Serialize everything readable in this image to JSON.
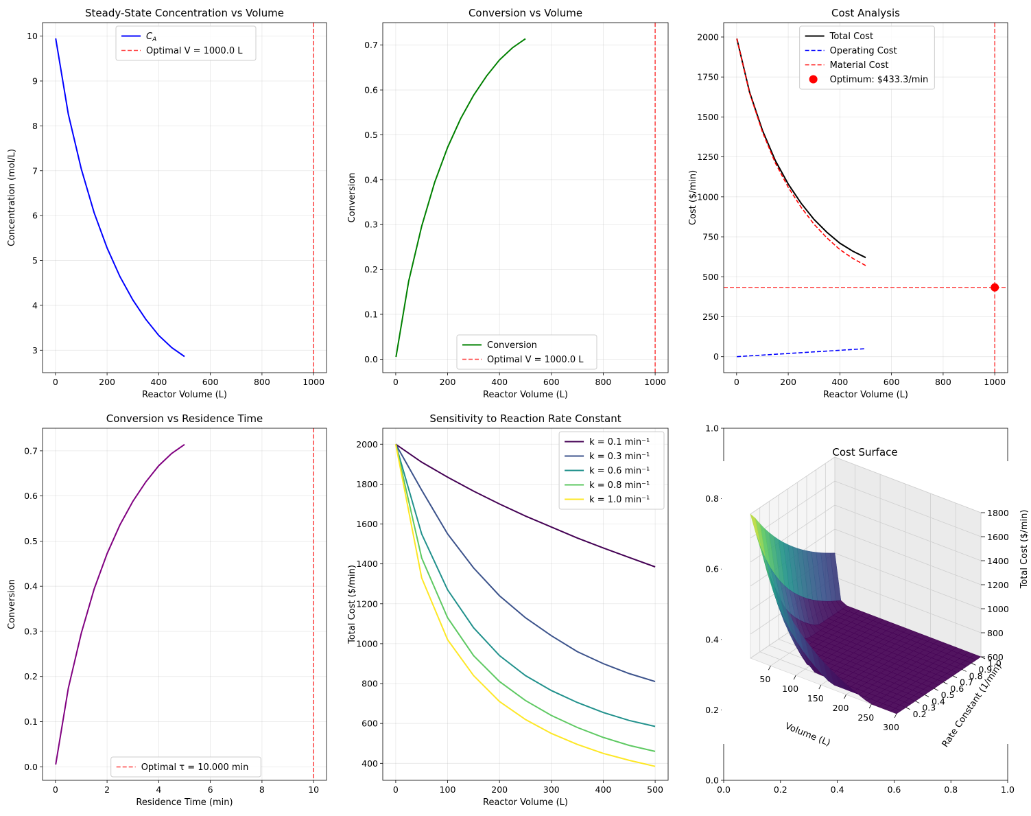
{
  "chart_data": [
    {
      "type": "line",
      "title": "Steady-State Concentration vs Volume",
      "xlabel": "Reactor Volume (L)",
      "ylabel": "Concentration (mol/L)",
      "xlim": [
        -50,
        1050
      ],
      "ylim": [
        2.5,
        10.3
      ],
      "xticks": [
        0,
        200,
        400,
        600,
        800,
        1000
      ],
      "yticks": [
        3,
        4,
        5,
        6,
        7,
        8,
        9,
        10
      ],
      "grid": true,
      "legend_loc": "top-center",
      "series": [
        {
          "name": "C_A",
          "color": "#0000ff",
          "x": [
            1,
            50,
            100,
            150,
            200,
            250,
            300,
            350,
            400,
            450,
            500
          ],
          "values": [
            9.95,
            8.26,
            7.04,
            6.06,
            5.28,
            4.64,
            4.12,
            3.69,
            3.33,
            3.06,
            2.86
          ]
        }
      ],
      "vlines": [
        {
          "x": 1000,
          "color": "#ff0000",
          "label": "Optimal V = 1000.0 L"
        }
      ],
      "legend": [
        {
          "label": "C",
          "sub": "A",
          "style": "solid",
          "color": "#0000ff"
        },
        {
          "label": "Optimal V = 1000.0 L",
          "style": "dashed",
          "color": "#ff0000"
        }
      ]
    },
    {
      "type": "line",
      "title": "Conversion vs Volume",
      "xlabel": "Reactor Volume (L)",
      "ylabel": "Conversion",
      "xlim": [
        -50,
        1050
      ],
      "ylim": [
        -0.03,
        0.75
      ],
      "xticks": [
        0,
        200,
        400,
        600,
        800,
        1000
      ],
      "yticks": [
        0.0,
        0.1,
        0.2,
        0.3,
        0.4,
        0.5,
        0.6,
        0.7
      ],
      "grid": true,
      "legend_loc": "bottom-center",
      "series": [
        {
          "name": "Conversion",
          "color": "#008000",
          "x": [
            1,
            50,
            100,
            150,
            200,
            250,
            300,
            350,
            400,
            450,
            500
          ],
          "values": [
            0.005,
            0.174,
            0.296,
            0.394,
            0.472,
            0.536,
            0.588,
            0.631,
            0.667,
            0.694,
            0.714
          ]
        }
      ],
      "vlines": [
        {
          "x": 1000,
          "color": "#ff0000",
          "label": "Optimal V = 1000.0 L"
        }
      ],
      "legend": [
        {
          "label": "Conversion",
          "style": "solid",
          "color": "#008000"
        },
        {
          "label": "Optimal V = 1000.0 L",
          "style": "dashed",
          "color": "#ff0000"
        }
      ]
    },
    {
      "type": "line",
      "title": "Cost Analysis",
      "xlabel": "Reactor Volume (L)",
      "ylabel": "Cost ($/min)",
      "xlim": [
        -50,
        1050
      ],
      "ylim": [
        -100,
        2090
      ],
      "xticks": [
        0,
        200,
        400,
        600,
        800,
        1000
      ],
      "yticks": [
        0,
        250,
        500,
        750,
        1000,
        1250,
        1500,
        1750,
        2000
      ],
      "grid": true,
      "legend_loc": "top-center",
      "series": [
        {
          "name": "Total Cost",
          "color": "#000000",
          "style": "solid",
          "x": [
            1,
            50,
            100,
            150,
            200,
            250,
            300,
            350,
            400,
            450,
            500
          ],
          "values": [
            1990,
            1657,
            1416,
            1227,
            1080,
            960,
            859,
            778,
            710,
            660,
            620
          ]
        },
        {
          "name": "Operating Cost",
          "color": "#0000ff",
          "style": "dashed",
          "x": [
            1,
            50,
            100,
            150,
            200,
            250,
            300,
            350,
            400,
            450,
            500
          ],
          "values": [
            0,
            5,
            10,
            15,
            20,
            25,
            30,
            35,
            40,
            45,
            50
          ]
        },
        {
          "name": "Material Cost",
          "color": "#ff0000",
          "style": "dashed",
          "x": [
            1,
            50,
            100,
            150,
            200,
            250,
            300,
            350,
            400,
            450,
            500
          ],
          "values": [
            1990,
            1652,
            1406,
            1212,
            1060,
            935,
            829,
            743,
            670,
            615,
            570
          ]
        }
      ],
      "vlines": [
        {
          "x": 1000,
          "color": "#ff0000"
        }
      ],
      "hlines": [
        {
          "y": 433.3,
          "color": "#ff0000"
        }
      ],
      "points": [
        {
          "x": 1000,
          "y": 433.3,
          "color": "#ff0000",
          "label": "Optimum: $433.3/min"
        }
      ],
      "legend": [
        {
          "label": "Total Cost",
          "style": "solid",
          "color": "#000000"
        },
        {
          "label": "Operating Cost",
          "style": "dashed",
          "color": "#0000ff"
        },
        {
          "label": "Material Cost",
          "style": "dashed",
          "color": "#ff0000"
        },
        {
          "label": "Optimum: $433.3/min",
          "style": "marker",
          "color": "#ff0000"
        }
      ]
    },
    {
      "type": "line",
      "title": "Conversion vs Residence Time",
      "xlabel": "Residence Time (min)",
      "ylabel": "Conversion",
      "xlim": [
        -0.5,
        10.5
      ],
      "ylim": [
        -0.03,
        0.75
      ],
      "xticks": [
        0,
        2,
        4,
        6,
        8,
        10
      ],
      "yticks": [
        0.0,
        0.1,
        0.2,
        0.3,
        0.4,
        0.5,
        0.6,
        0.7
      ],
      "grid": true,
      "legend_loc": "bottom-center",
      "series": [
        {
          "name": "Conversion",
          "color": "#800080",
          "x": [
            0.01,
            0.5,
            1,
            1.5,
            2,
            2.5,
            3,
            3.5,
            4,
            4.5,
            5
          ],
          "values": [
            0.005,
            0.174,
            0.296,
            0.394,
            0.472,
            0.536,
            0.588,
            0.631,
            0.667,
            0.694,
            0.714
          ]
        }
      ],
      "vlines": [
        {
          "x": 10,
          "color": "#ff0000",
          "label": "Optimal τ = 10.000 min"
        }
      ],
      "legend": [
        {
          "label": "Optimal τ = 10.000 min",
          "style": "dashed",
          "color": "#ff0000"
        }
      ]
    },
    {
      "type": "line",
      "title": "Sensitivity to Reaction Rate Constant",
      "xlabel": "Reactor Volume (L)",
      "ylabel": "Total Cost ($/min)",
      "xlim": [
        -25,
        525
      ],
      "ylim": [
        315,
        2080
      ],
      "xticks": [
        0,
        100,
        200,
        300,
        400,
        500
      ],
      "yticks": [
        400,
        600,
        800,
        1000,
        1200,
        1400,
        1600,
        1800,
        2000
      ],
      "grid": true,
      "legend_loc": "top-right",
      "series": [
        {
          "name": "k = 0.1 min⁻¹",
          "color": "#440154",
          "x": [
            0,
            50,
            100,
            150,
            200,
            250,
            300,
            350,
            400,
            450,
            500
          ],
          "values": [
            2000,
            1910,
            1835,
            1765,
            1700,
            1640,
            1585,
            1530,
            1480,
            1432,
            1385
          ]
        },
        {
          "name": "k = 0.3 min⁻¹",
          "color": "#3b528b",
          "x": [
            0,
            50,
            100,
            150,
            200,
            250,
            300,
            350,
            400,
            450,
            500
          ],
          "values": [
            2000,
            1770,
            1550,
            1380,
            1240,
            1130,
            1040,
            960,
            900,
            850,
            810
          ]
        },
        {
          "name": "k = 0.6 min⁻¹",
          "color": "#21918c",
          "x": [
            0,
            50,
            100,
            150,
            200,
            250,
            300,
            350,
            400,
            450,
            500
          ],
          "values": [
            2000,
            1550,
            1270,
            1080,
            940,
            840,
            765,
            705,
            655,
            615,
            585
          ]
        },
        {
          "name": "k = 0.8 min⁻¹",
          "color": "#5ec962",
          "x": [
            0,
            50,
            100,
            150,
            200,
            250,
            300,
            350,
            400,
            450,
            500
          ],
          "values": [
            2000,
            1430,
            1130,
            940,
            810,
            715,
            640,
            580,
            530,
            490,
            460
          ]
        },
        {
          "name": "k = 1.0 min⁻¹",
          "color": "#fde725",
          "x": [
            0,
            50,
            100,
            150,
            200,
            250,
            300,
            350,
            400,
            450,
            500
          ],
          "values": [
            2000,
            1330,
            1020,
            840,
            710,
            620,
            550,
            495,
            450,
            415,
            385
          ]
        }
      ],
      "legend": [
        {
          "label": "k = 0.1 min⁻¹",
          "style": "solid",
          "color": "#440154"
        },
        {
          "label": "k = 0.3 min⁻¹",
          "style": "solid",
          "color": "#3b528b"
        },
        {
          "label": "k = 0.6 min⁻¹",
          "style": "solid",
          "color": "#21918c"
        },
        {
          "label": "k = 0.8 min⁻¹",
          "style": "solid",
          "color": "#5ec962"
        },
        {
          "label": "k = 1.0 min⁻¹",
          "style": "solid",
          "color": "#fde725"
        }
      ]
    },
    {
      "type": "surface",
      "title": "Cost Surface",
      "xlabel": "Volume (L)",
      "ylabel": "Rate Constant (1/min)",
      "zlabel": "Total Cost ($/min)",
      "xticks": [
        50,
        100,
        150,
        200,
        250,
        300
      ],
      "yticks": [
        0.2,
        0.3,
        0.4,
        0.5,
        0.6,
        0.7,
        0.8,
        0.9,
        1.0
      ],
      "zticks": [
        600,
        800,
        1000,
        1200,
        1400,
        1600,
        1800
      ],
      "xlim": [
        10,
        300
      ],
      "ylim": [
        0.1,
        1.0
      ],
      "zlim": [
        600,
        1800
      ],
      "colormap": [
        "#440154",
        "#3b528b",
        "#21918c",
        "#5ec962",
        "#fde725"
      ],
      "outer_axes": {
        "xticks": [
          "0.0",
          "0.2",
          "0.4",
          "0.6",
          "0.8",
          "1.0"
        ],
        "yticks": [
          "0.0",
          "0.2",
          "0.4",
          "0.6",
          "0.8",
          "1.0"
        ]
      }
    }
  ]
}
